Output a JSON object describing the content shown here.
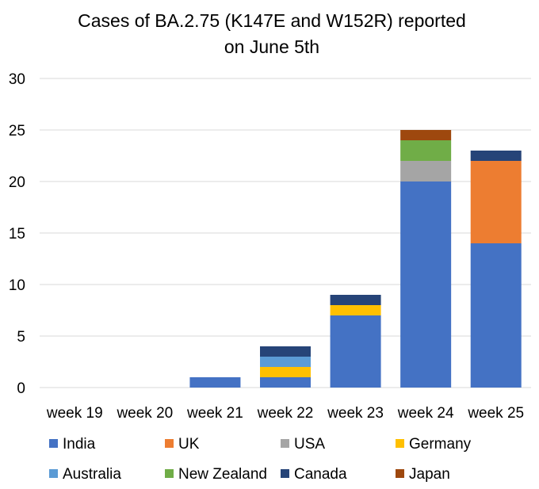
{
  "chart_data": {
    "type": "bar",
    "stacked": true,
    "title": [
      "Cases of BA.2.75 (K147E and W152R) reported",
      "on June 5th"
    ],
    "categories": [
      "week 19",
      "week 20",
      "week 21",
      "week 22",
      "week 23",
      "week 24",
      "week 25"
    ],
    "ylim": [
      0,
      30
    ],
    "yticks": [
      0,
      5,
      10,
      15,
      20,
      25,
      30
    ],
    "grid": true,
    "legend_position": "bottom",
    "series": [
      {
        "name": "India",
        "color": "#4472c4",
        "values": [
          0,
          0,
          1,
          1,
          7,
          20,
          14
        ]
      },
      {
        "name": "UK",
        "color": "#ed7d31",
        "values": [
          0,
          0,
          0,
          0,
          0,
          0,
          8
        ]
      },
      {
        "name": "USA",
        "color": "#a5a5a5",
        "values": [
          0,
          0,
          0,
          0,
          0,
          2,
          0
        ]
      },
      {
        "name": "Germany",
        "color": "#ffc000",
        "values": [
          0,
          0,
          0,
          1,
          1,
          0,
          0
        ]
      },
      {
        "name": "Australia",
        "color": "#5b9bd5",
        "values": [
          0,
          0,
          0,
          1,
          0,
          0,
          0
        ]
      },
      {
        "name": "New Zealand",
        "color": "#70ad47",
        "values": [
          0,
          0,
          0,
          0,
          0,
          2,
          0
        ]
      },
      {
        "name": "Canada",
        "color": "#264478",
        "values": [
          0,
          0,
          0,
          1,
          1,
          0,
          1
        ]
      },
      {
        "name": "Japan",
        "color": "#9e480e",
        "values": [
          0,
          0,
          0,
          0,
          0,
          1,
          0
        ]
      }
    ]
  }
}
